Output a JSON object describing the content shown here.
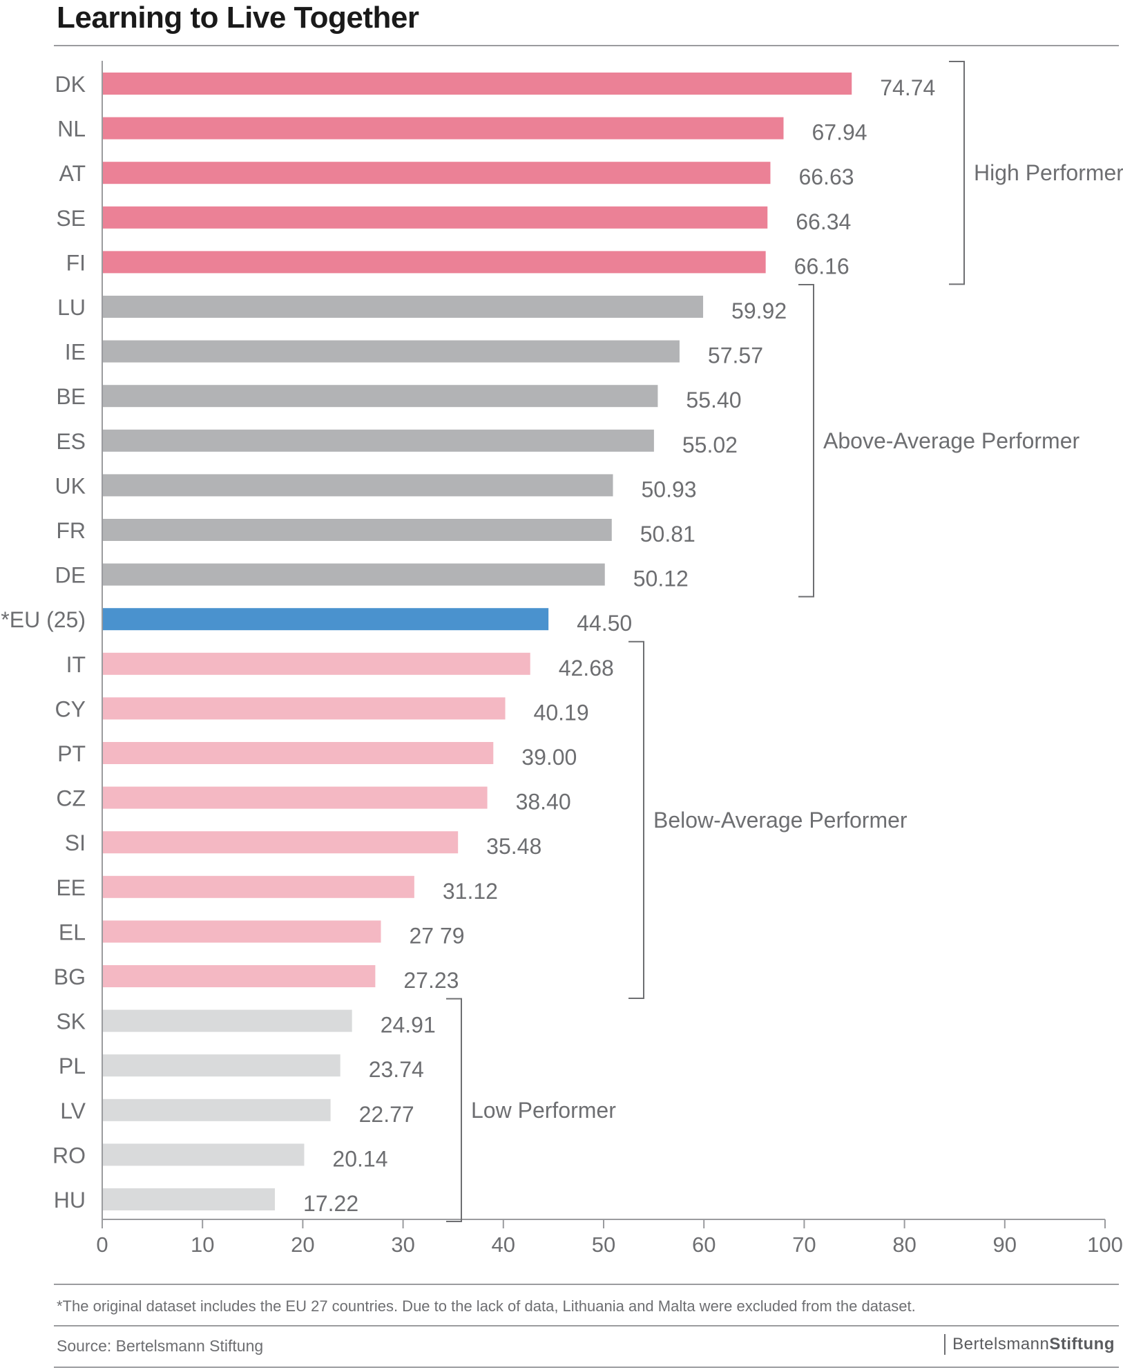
{
  "title": "Learning to Live Together",
  "footnote": "*The original dataset includes the EU 27 countries. Due to the lack of data, Lithuania and Malta were excluded from the dataset.",
  "source": "Source:  Bertelsmann Stiftung",
  "logo": {
    "part1": "Bertelsmann",
    "part2": "Stiftung"
  },
  "colors": {
    "high": "#eb8196",
    "above": "#b2b3b5",
    "eu": "#4a92ce",
    "below": "#f4b8c3",
    "low": "#d9dadb",
    "text": "#6d6e71",
    "axis": "#9a9b9e"
  },
  "chart_data": {
    "type": "bar",
    "orientation": "horizontal",
    "title": "Learning to Live Together",
    "xlim": [
      0,
      100
    ],
    "xticks": [
      0,
      10,
      20,
      30,
      40,
      50,
      60,
      70,
      80,
      90,
      100
    ],
    "grid": false,
    "categories": [
      "DK",
      "NL",
      "AT",
      "SE",
      "FI",
      "LU",
      "IE",
      "BE",
      "ES",
      "UK",
      "FR",
      "DE",
      "*EU (25)",
      "IT",
      "CY",
      "PT",
      "CZ",
      "SI",
      "EE",
      "EL",
      "BG",
      "SK",
      "PL",
      "LV",
      "RO",
      "HU"
    ],
    "values": [
      74.74,
      67.94,
      66.63,
      66.34,
      66.16,
      59.92,
      57.57,
      55.4,
      55.02,
      50.93,
      50.81,
      50.12,
      44.5,
      42.68,
      40.19,
      39.0,
      38.4,
      35.48,
      31.12,
      27.79,
      27.23,
      24.91,
      23.74,
      22.77,
      20.14,
      17.22
    ],
    "value_labels": [
      "74.74",
      "67.94",
      "66.63",
      "66.34",
      "66.16",
      "59.92",
      "57.57",
      "55.40",
      "55.02",
      "50.93",
      "50.81",
      "50.12",
      "44.50",
      "42.68",
      "40.19",
      "39.00",
      "38.40",
      "35.48",
      "31.12",
      "27 79",
      "27.23",
      "24.91",
      "23.74",
      "22.77",
      "20.14",
      "17.22"
    ],
    "group_of_bar": [
      "high",
      "high",
      "high",
      "high",
      "high",
      "above",
      "above",
      "above",
      "above",
      "above",
      "above",
      "above",
      "eu",
      "below",
      "below",
      "below",
      "below",
      "below",
      "below",
      "below",
      "below",
      "low",
      "low",
      "low",
      "low",
      "low"
    ],
    "groups": [
      {
        "key": "high",
        "label": "High Performer",
        "from": 0,
        "to": 4
      },
      {
        "key": "above",
        "label": "Above-Average Performer",
        "from": 5,
        "to": 11
      },
      {
        "key": "below",
        "label": "Below-Average Performer",
        "from": 13,
        "to": 20
      },
      {
        "key": "low",
        "label": "Low Performer",
        "from": 21,
        "to": 25
      }
    ]
  }
}
